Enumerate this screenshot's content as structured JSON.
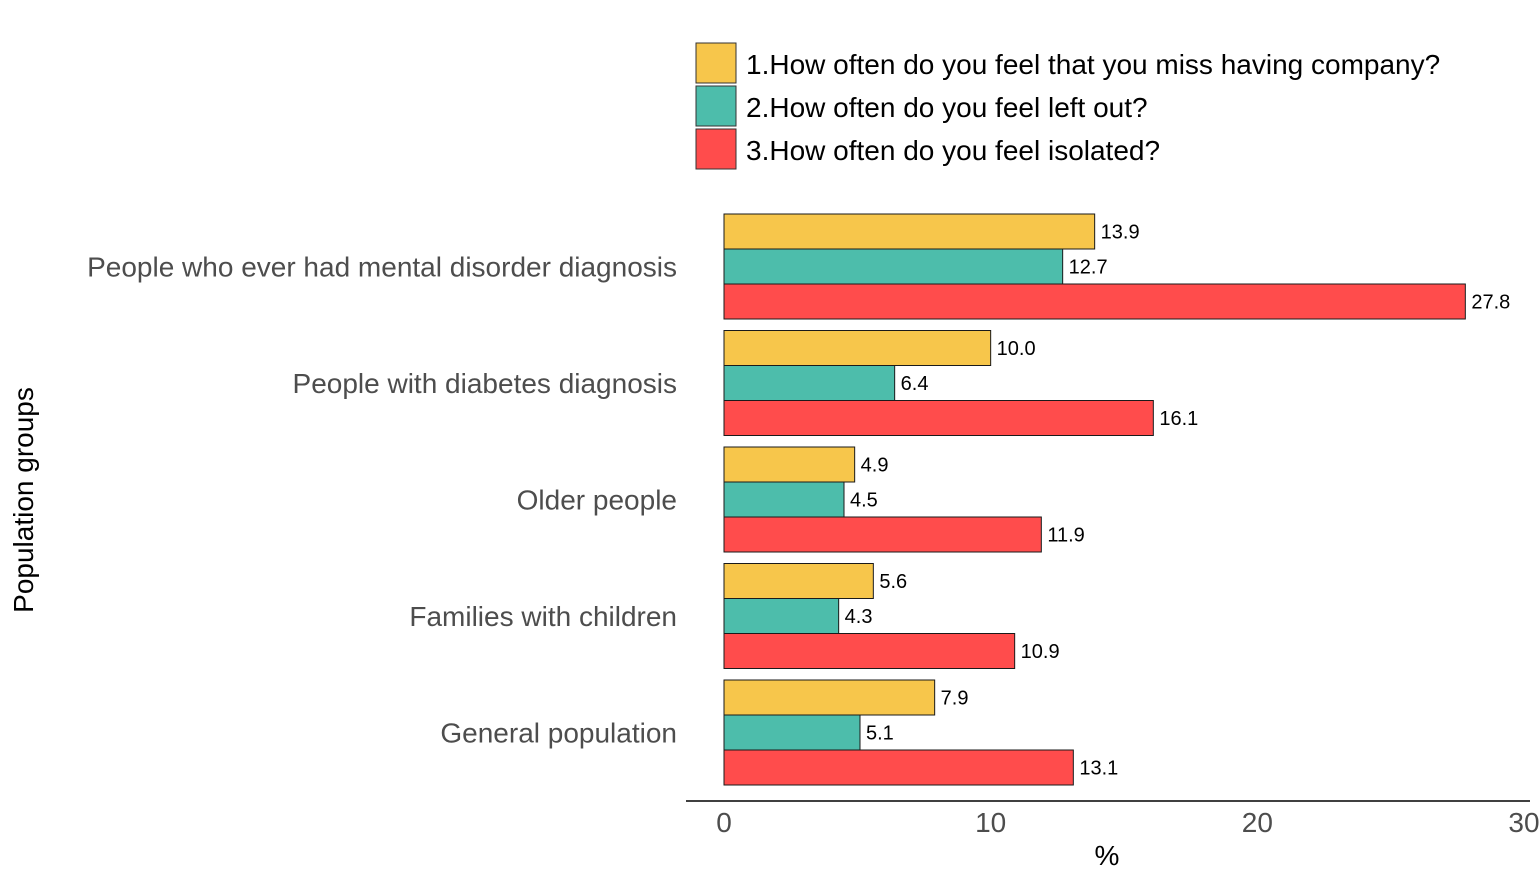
{
  "chart_data": {
    "type": "bar",
    "orientation": "horizontal",
    "categories": [
      "People who ever had mental disorder diagnosis",
      "People with diabetes diagnosis",
      "Older people",
      "Families with children",
      "General population"
    ],
    "series": [
      {
        "name": "1.How often do you feel that you miss having company?",
        "color": "#F7C64B",
        "values": [
          13.9,
          10.0,
          4.9,
          5.6,
          7.9
        ]
      },
      {
        "name": "2.How often do you feel left out?",
        "color": "#4DBDAB",
        "values": [
          12.7,
          6.4,
          4.5,
          4.3,
          5.1
        ]
      },
      {
        "name": "3.How often do you feel isolated?",
        "color": "#FF4C4C",
        "values": [
          27.8,
          16.1,
          11.9,
          10.9,
          13.1
        ]
      }
    ],
    "xlabel": "%",
    "ylabel": "Population groups",
    "xlim": [
      0,
      30
    ],
    "xticks": [
      "0",
      "10",
      "20",
      "30"
    ],
    "grid": false,
    "legend_position": "top"
  }
}
